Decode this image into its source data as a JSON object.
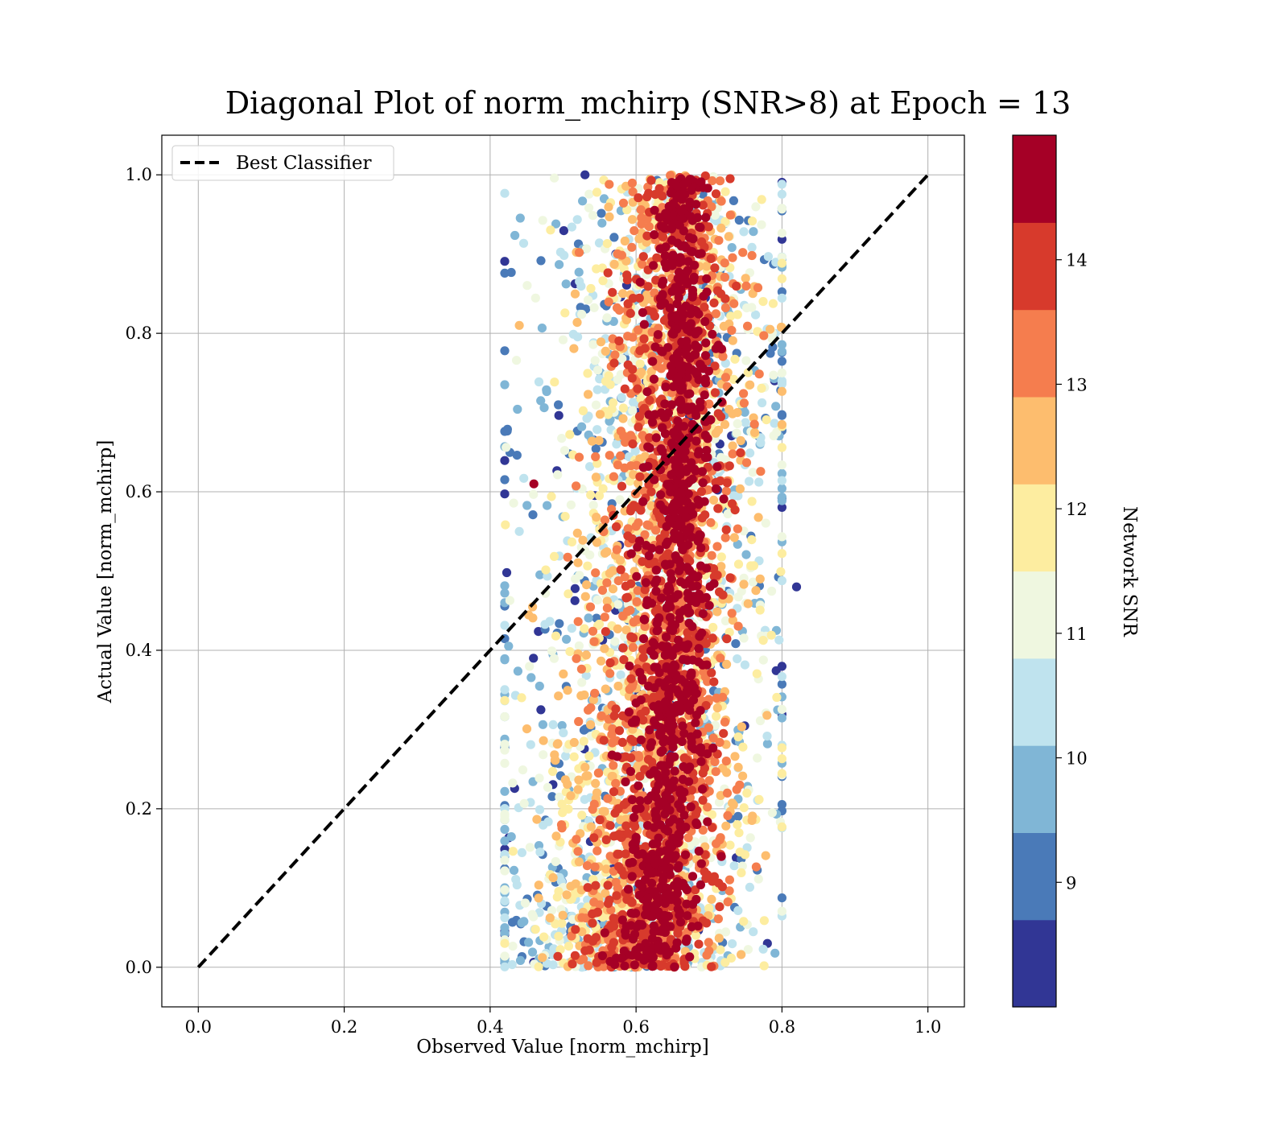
{
  "chart_data": {
    "type": "scatter",
    "title": "Diagonal Plot of norm_mchirp (SNR>8) at Epoch = 13",
    "xlabel": "Observed Value [norm_mchirp]",
    "ylabel": "Actual Value [norm_mchirp]",
    "xlim": [
      -0.05,
      1.05
    ],
    "ylim": [
      -0.05,
      1.05
    ],
    "xticks": [
      "0.0",
      "0.2",
      "0.4",
      "0.6",
      "0.8",
      "1.0"
    ],
    "yticks": [
      "0.0",
      "0.2",
      "0.4",
      "0.6",
      "0.8",
      "1.0"
    ],
    "grid": true,
    "legend": {
      "placement": "upper-left",
      "entries": [
        {
          "label": "Best Classifier",
          "style": "dashed",
          "color": "#000000"
        }
      ]
    },
    "reference_line": {
      "name": "Best Classifier",
      "x": [
        0.0,
        1.0
      ],
      "y": [
        0.0,
        1.0
      ]
    },
    "colorbar": {
      "label": "Network SNR",
      "range": [
        8,
        15
      ],
      "ticks": [
        "9",
        "10",
        "11",
        "12",
        "13",
        "14"
      ],
      "colors": [
        "#313695",
        "#4a7ab8",
        "#80b6d6",
        "#bfe3ee",
        "#eff7e0",
        "#fdeda0",
        "#fdbd6e",
        "#f57d4e",
        "#d73a2c",
        "#a50026"
      ]
    },
    "series": [
      {
        "name": "Network SNR scatter",
        "trend": {
          "y": [
            0.0,
            0.05,
            0.1,
            0.2,
            0.3,
            0.4,
            0.5,
            0.6,
            0.7,
            0.8,
            0.9,
            1.0
          ],
          "x_center": [
            0.615,
            0.625,
            0.635,
            0.645,
            0.65,
            0.655,
            0.66,
            0.66,
            0.665,
            0.665,
            0.665,
            0.665
          ]
        },
        "sample_points": [
          {
            "x": 0.82,
            "y": 0.48,
            "snr": 8.2
          },
          {
            "x": 0.78,
            "y": 0.03,
            "snr": 8.3
          },
          {
            "x": 0.46,
            "y": 0.61,
            "snr": 14.8
          },
          {
            "x": 0.44,
            "y": 0.81,
            "snr": 12.6
          },
          {
            "x": 0.53,
            "y": 1.0,
            "snr": 8.1
          },
          {
            "x": 0.79,
            "y": 0.74,
            "snr": 8.2
          },
          {
            "x": 0.44,
            "y": 0.55,
            "snr": 10.2
          },
          {
            "x": 0.42,
            "y": 0.03,
            "snr": 11.8
          }
        ]
      }
    ]
  }
}
